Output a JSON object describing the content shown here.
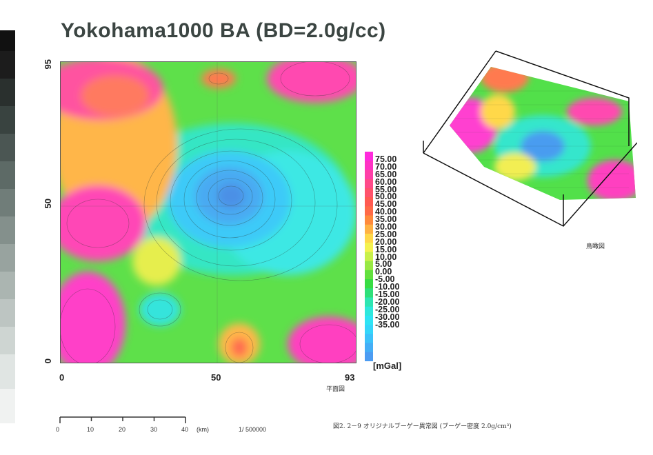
{
  "title": "Yokohama1000 BA (BD=2.0g/cc)",
  "map": {
    "y_ticks": [
      "95",
      "50",
      "0"
    ],
    "x_ticks": [
      "0",
      "50",
      "93"
    ],
    "plan_label": "平面図"
  },
  "legend": {
    "labels": [
      "75.00",
      "70.00",
      "65.00",
      "60.00",
      "55.00",
      "50.00",
      "45.00",
      "40.00",
      "35.00",
      "30.00",
      "25.00",
      "20.00",
      "15.00",
      "10.00",
      "5.00",
      "0.00",
      "-5.00",
      "-10.00",
      "-15.00",
      "-20.00",
      "-25.00",
      "-30.00",
      "-35.00"
    ],
    "unit": "[mGal]",
    "colors": [
      "#ff2bdc",
      "#ff33c4",
      "#ff3fa8",
      "#ff4a8a",
      "#ff526c",
      "#ff5a52",
      "#ff6a48",
      "#ff8a3c",
      "#ffb244",
      "#ffd84a",
      "#f4f250",
      "#c8f04a",
      "#98e844",
      "#62e03e",
      "#38dc44",
      "#2ee07a",
      "#2ee6b2",
      "#2ee8dc",
      "#2ee4f4",
      "#34d6fa",
      "#3cc2fa",
      "#44aef6",
      "#4c9cf2"
    ]
  },
  "birdseye_label": "鳥瞰図",
  "scale": {
    "ticks": [
      "0",
      "10",
      "20",
      "30",
      "40"
    ],
    "unit": "(km)",
    "ratio": "1/ 500000"
  },
  "caption": "図2. 2－9 オリジナルブーゲー異常図 (ブーゲー密度 2.0g/cm³)"
}
